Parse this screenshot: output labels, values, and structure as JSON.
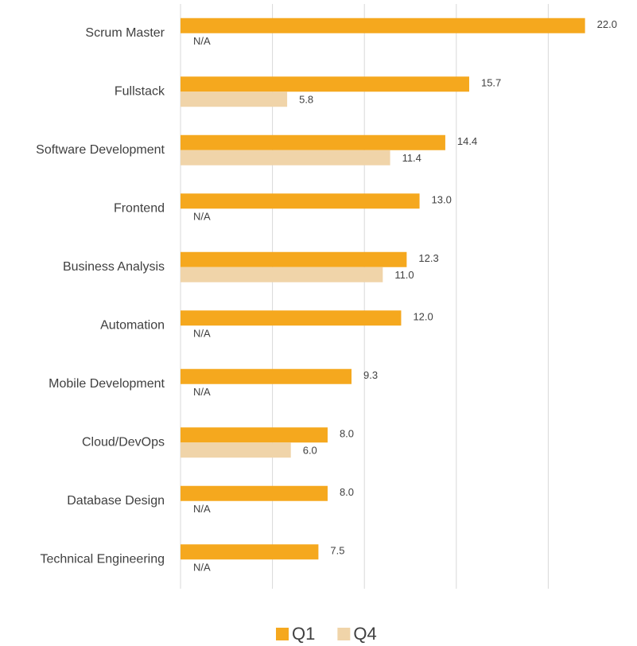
{
  "chart_data": {
    "type": "hbar",
    "categories": [
      "Scrum Master",
      "Fullstack",
      "Software Development",
      "Frontend",
      "Business Analysis",
      "Automation",
      "Mobile Development",
      "Cloud/DevOps",
      "Database Design",
      "Technical Engineering"
    ],
    "series": [
      {
        "name": "Q1",
        "color": "#f5a81e",
        "values": [
          22.0,
          15.7,
          14.4,
          13.0,
          12.3,
          12.0,
          9.3,
          8.0,
          8.0,
          7.5
        ],
        "value_labels": [
          "22.0",
          "15.7",
          "14.4",
          "13.0",
          "12.3",
          "12.0",
          "9.3",
          "8.0",
          "8.0",
          "7.5"
        ]
      },
      {
        "name": "Q4",
        "color": "#f0d4a9",
        "values": [
          null,
          5.8,
          11.4,
          null,
          11.0,
          null,
          null,
          6.0,
          null,
          null
        ],
        "value_labels": [
          "N/A",
          "5.8",
          "11.4",
          "N/A",
          "11.0",
          "N/A",
          "N/A",
          "6.0",
          "N/A",
          "N/A"
        ]
      }
    ],
    "xlim": [
      0,
      25
    ],
    "xticks": [
      0,
      5,
      10,
      15,
      20
    ],
    "grid": true,
    "show_tick_labels": false,
    "legend": "bottom"
  }
}
